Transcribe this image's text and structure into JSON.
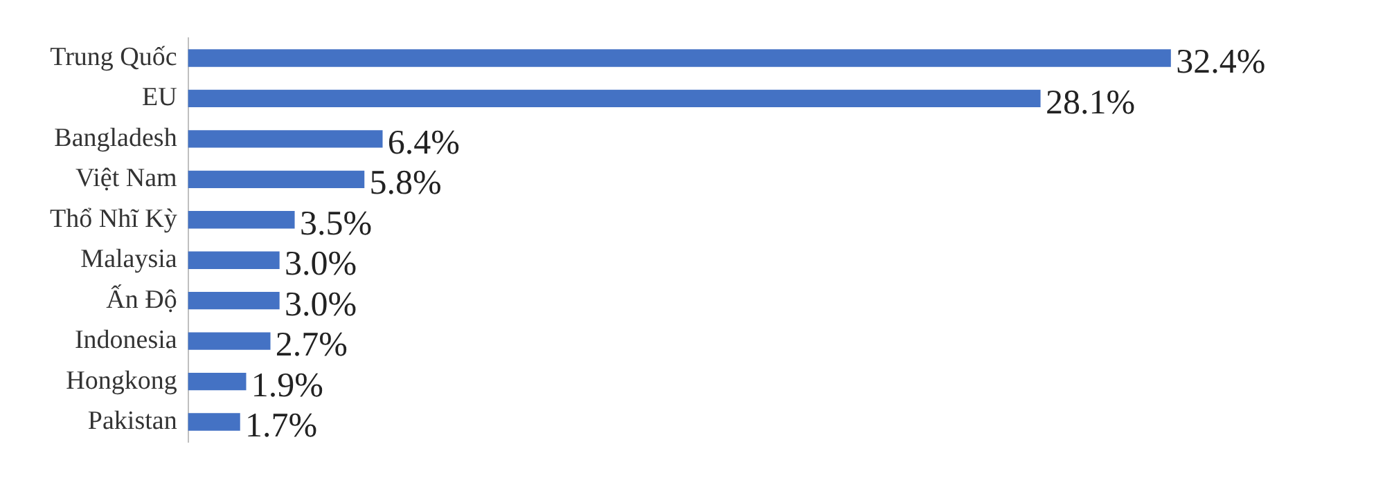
{
  "chart_data": {
    "type": "bar",
    "orientation": "horizontal",
    "categories": [
      "Trung Quốc",
      "EU",
      "Bangladesh",
      "Việt Nam",
      "Thổ Nhĩ Kỳ",
      "Malaysia",
      "Ấn Độ",
      "Indonesia",
      "Hongkong",
      "Pakistan"
    ],
    "values": [
      32.4,
      28.1,
      6.4,
      5.8,
      3.5,
      3.0,
      3.0,
      2.7,
      1.9,
      1.7
    ],
    "value_labels": [
      "32.4%",
      "28.1%",
      "6.4%",
      "5.8%",
      "3.5%",
      "3.0%",
      "3.0%",
      "2.7%",
      "1.9%",
      "1.7%"
    ],
    "color": "#4472c4"
  }
}
